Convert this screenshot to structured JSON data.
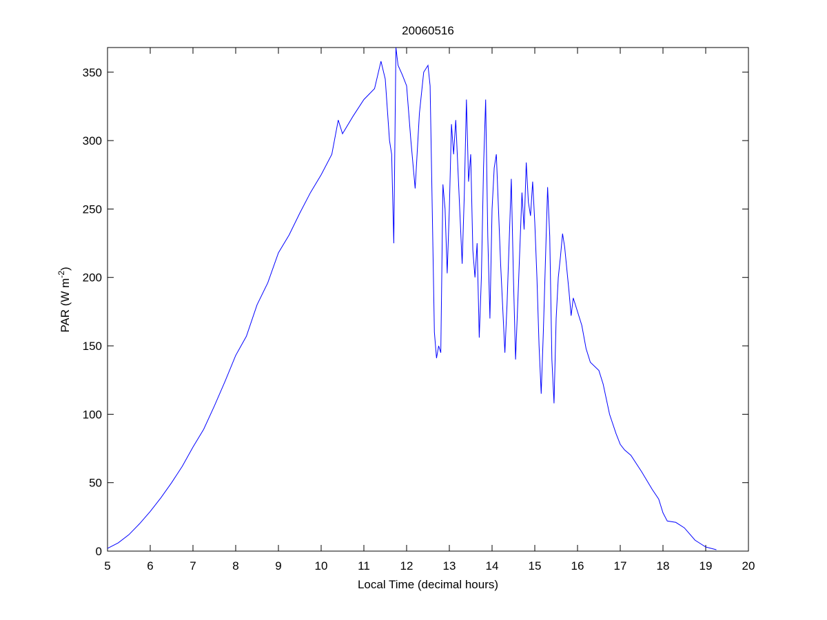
{
  "chart_data": {
    "type": "line",
    "title": "20060516",
    "xlabel": "Local Time (decimal hours)",
    "ylabel": {
      "text": "PAR (W m",
      "superscript": "-2",
      "end": ")"
    },
    "x": [
      5.0,
      5.25,
      5.5,
      5.75,
      6.0,
      6.25,
      6.5,
      6.75,
      7.0,
      7.25,
      7.5,
      7.75,
      8.0,
      8.25,
      8.5,
      8.75,
      9.0,
      9.25,
      9.5,
      9.75,
      10.0,
      10.25,
      10.4,
      10.5,
      10.75,
      11.0,
      11.25,
      11.4,
      11.5,
      11.6,
      11.65,
      11.7,
      11.75,
      11.8,
      11.9,
      12.0,
      12.1,
      12.2,
      12.3,
      12.4,
      12.5,
      12.55,
      12.6,
      12.65,
      12.7,
      12.75,
      12.8,
      12.85,
      12.9,
      12.95,
      13.0,
      13.05,
      13.1,
      13.15,
      13.2,
      13.3,
      13.35,
      13.4,
      13.45,
      13.5,
      13.55,
      13.6,
      13.65,
      13.7,
      13.75,
      13.8,
      13.85,
      13.9,
      13.95,
      14.0,
      14.05,
      14.1,
      14.2,
      14.3,
      14.35,
      14.45,
      14.5,
      14.55,
      14.6,
      14.7,
      14.75,
      14.8,
      14.85,
      14.9,
      14.95,
      15.0,
      15.05,
      15.1,
      15.15,
      15.2,
      15.3,
      15.35,
      15.4,
      15.45,
      15.5,
      15.55,
      15.6,
      15.65,
      15.7,
      15.8,
      15.85,
      15.9,
      16.0,
      16.1,
      16.2,
      16.3,
      16.5,
      16.6,
      16.75,
      16.9,
      17.0,
      17.1,
      17.25,
      17.5,
      17.75,
      17.9,
      18.0,
      18.1,
      18.3,
      18.5,
      18.75,
      19.0,
      19.25
    ],
    "series": [
      {
        "color": "#0000ff",
        "values": [
          2,
          6,
          12,
          20,
          29,
          39,
          50,
          62,
          76,
          89,
          106,
          124,
          143,
          157,
          180,
          196,
          218,
          231,
          247,
          262,
          275,
          290,
          315,
          305,
          318,
          330,
          338,
          358,
          345,
          300,
          290,
          225,
          368,
          355,
          348,
          340,
          300,
          265,
          320,
          350,
          355,
          340,
          250,
          160,
          141,
          150,
          145,
          268,
          250,
          203,
          250,
          312,
          290,
          315,
          280,
          210,
          260,
          330,
          270,
          290,
          220,
          200,
          225,
          156,
          200,
          280,
          330,
          230,
          170,
          250,
          280,
          290,
          210,
          145,
          180,
          272,
          200,
          140,
          180,
          262,
          235,
          284,
          255,
          245,
          270,
          240,
          200,
          150,
          115,
          160,
          266,
          230,
          140,
          108,
          170,
          200,
          215,
          232,
          222,
          190,
          172,
          185,
          175,
          165,
          148,
          138,
          132,
          122,
          100,
          86,
          78,
          74,
          70,
          58,
          45,
          38,
          28,
          22,
          21,
          17,
          8,
          3,
          1
        ]
      }
    ],
    "xlim": [
      5,
      20
    ],
    "xticks": [
      5,
      6,
      7,
      8,
      9,
      10,
      11,
      12,
      13,
      14,
      15,
      16,
      17,
      18,
      19,
      20
    ],
    "ylim": [
      0,
      368
    ],
    "yticks": [
      0,
      50,
      100,
      150,
      200,
      250,
      300,
      350
    ]
  }
}
